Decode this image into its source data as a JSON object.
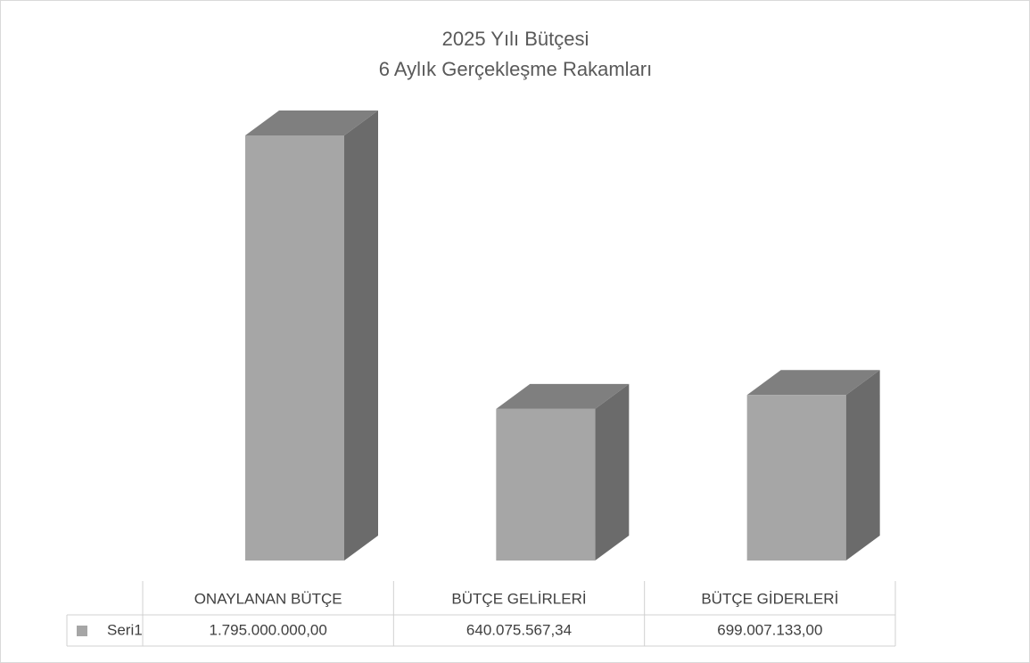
{
  "chart_data": {
    "type": "bar3d",
    "title": "2025 Yılı Bütçesi",
    "subtitle": "6 Aylık Gerçekleşme Rakamları",
    "categories": [
      "ONAYLANAN BÜTÇE",
      "BÜTÇE GELİRLERİ",
      "BÜTÇE GİDERLERİ"
    ],
    "series": [
      {
        "name": "Seri1",
        "color": "#a6a6a6",
        "values": [
          1795000000,
          640075567.34,
          699007133
        ],
        "value_labels": [
          "1.795.000.000,00",
          "640.075.567,34",
          "699.007.133,00"
        ]
      }
    ]
  }
}
